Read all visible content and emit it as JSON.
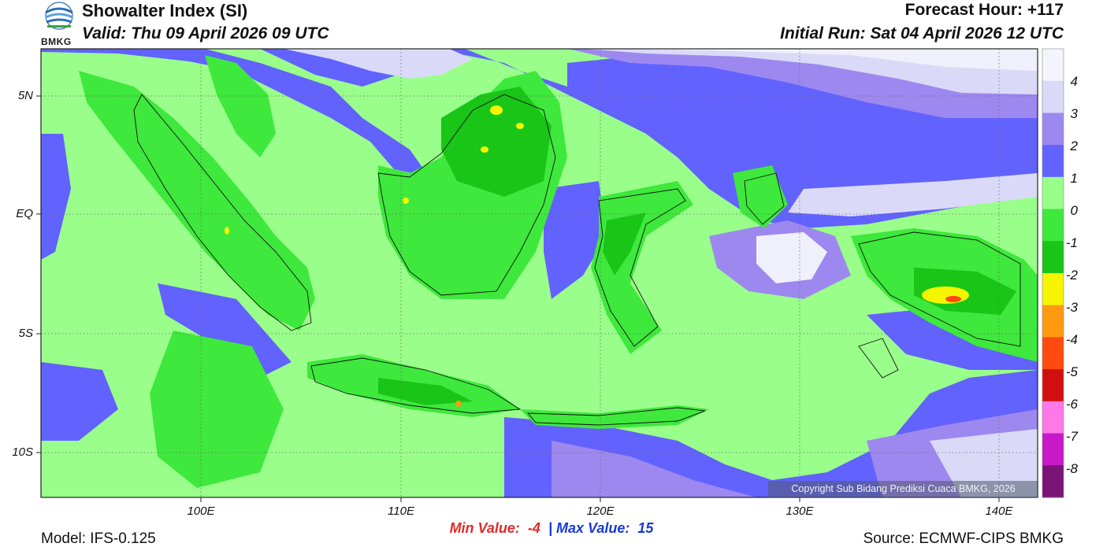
{
  "header": {
    "title": "Showalter Index (SI)",
    "valid": "Valid: Thu 09 April 2026 09 UTC",
    "forecast_hour": "Forecast Hour: +117",
    "initial_run": "Initial Run: Sat 04 April 2026 12 UTC",
    "logo_text": "BMKG"
  },
  "map": {
    "region": "Indonesia",
    "lat_labels": [
      "5N",
      "EQ",
      "5S",
      "10S"
    ],
    "lon_labels": [
      "100E",
      "110E",
      "120E",
      "130E",
      "140E"
    ],
    "copyright": "Copyright Sub Bidang Prediksi Cuaca BMKG, 2026",
    "colors": {
      "ocean_mild": "#9aff8a",
      "land_unstable": "#3ee83c",
      "very_unstable": "#19c617",
      "stable_1": "#6262ff",
      "stable_2": "#9d88f0",
      "stable_3": "#dadaf8",
      "stable_4": "#f0f0fc"
    }
  },
  "colorbar": {
    "labels": [
      "4",
      "3",
      "2",
      "1",
      "0",
      "-1",
      "-2",
      "-3",
      "-4",
      "-5",
      "-6",
      "-7",
      "-8"
    ],
    "colors": [
      "#f4f4fc",
      "#dadaf8",
      "#9d88f0",
      "#6262ff",
      "#9aff8a",
      "#3ee83c",
      "#19c617",
      "#f5f500",
      "#ff9a10",
      "#ff4a10",
      "#d20f0f",
      "#ff78e8",
      "#c818c8",
      "#7a1478"
    ]
  },
  "stats": {
    "min_label": "Min Value:",
    "min_value": "-4",
    "separator": "|",
    "max_label": "Max Value:",
    "max_value": "15"
  },
  "footer": {
    "model": "Model: IFS-0.125",
    "source": "Source: ECMWF-CIPS BMKG"
  }
}
